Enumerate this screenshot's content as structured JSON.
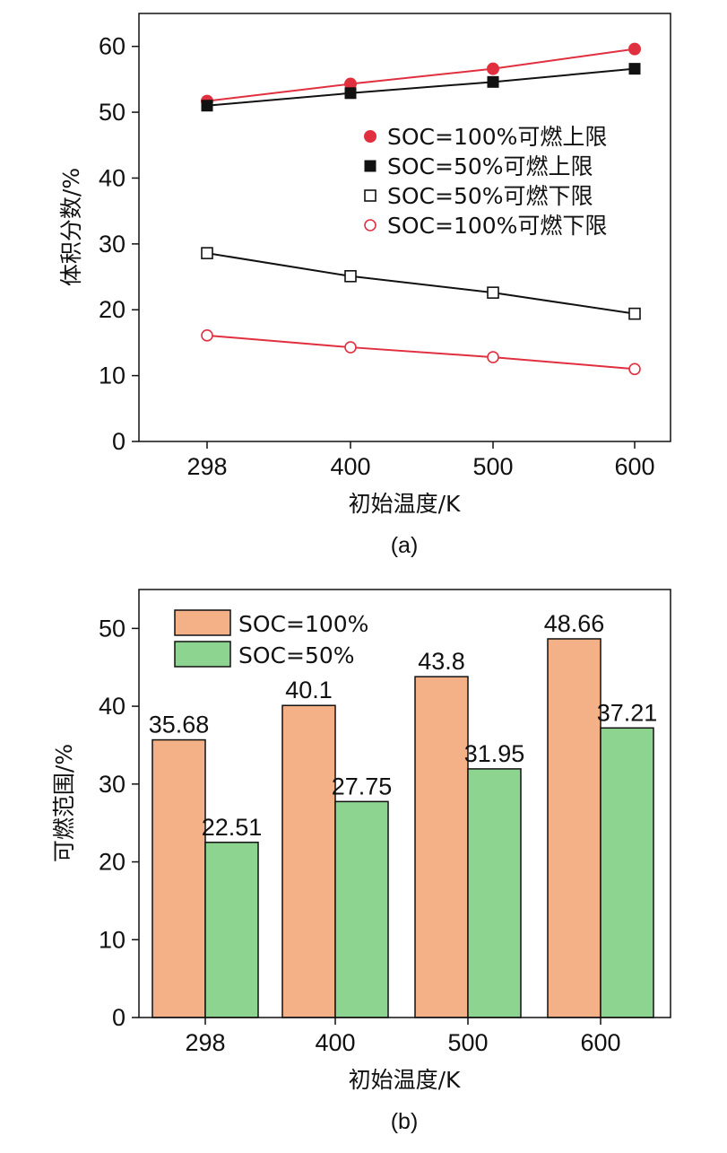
{
  "chart_data": [
    {
      "type": "line",
      "caption": "(a)",
      "xlabel": "初始温度/K",
      "ylabel": "体积分数/%",
      "categories": [
        "298",
        "400",
        "500",
        "600"
      ],
      "yticks": [
        "0",
        "10",
        "20",
        "30",
        "40",
        "50",
        "60"
      ],
      "ylim": [
        0,
        65
      ],
      "legend_position": "right",
      "series": [
        {
          "name": "SOC=100%可燃上限",
          "marker": "filled-circle",
          "color": "#e03040",
          "values": [
            51.7,
            54.3,
            56.6,
            59.6
          ]
        },
        {
          "name": "SOC=50%可燃上限",
          "marker": "filled-square",
          "color": "#111111",
          "values": [
            51.0,
            52.9,
            54.6,
            56.6
          ]
        },
        {
          "name": "SOC=50%可燃下限",
          "marker": "open-square",
          "color": "#111111",
          "values": [
            28.6,
            25.1,
            22.6,
            19.4
          ]
        },
        {
          "name": "SOC=100%可燃下限",
          "marker": "open-circle",
          "color": "#e03040",
          "values": [
            16.1,
            14.3,
            12.8,
            11.0
          ]
        }
      ]
    },
    {
      "type": "bar",
      "caption": "(b)",
      "xlabel": "初始温度/K",
      "ylabel": "可燃范围/%",
      "categories": [
        "298",
        "400",
        "500",
        "600"
      ],
      "yticks": [
        "0",
        "10",
        "20",
        "30",
        "40",
        "50"
      ],
      "ylim": [
        0,
        55
      ],
      "legend_position": "top-left",
      "series": [
        {
          "name": "SOC=100%",
          "color": "#f4b187",
          "values": [
            35.68,
            40.1,
            43.8,
            48.66
          ],
          "labels": [
            "35.68",
            "40.1",
            "43.8",
            "48.66"
          ]
        },
        {
          "name": "SOC=50%",
          "color": "#8dd491",
          "values": [
            22.51,
            27.75,
            31.95,
            37.21
          ],
          "labels": [
            "22.51",
            "27.75",
            "31.95",
            "37.21"
          ]
        }
      ]
    }
  ]
}
